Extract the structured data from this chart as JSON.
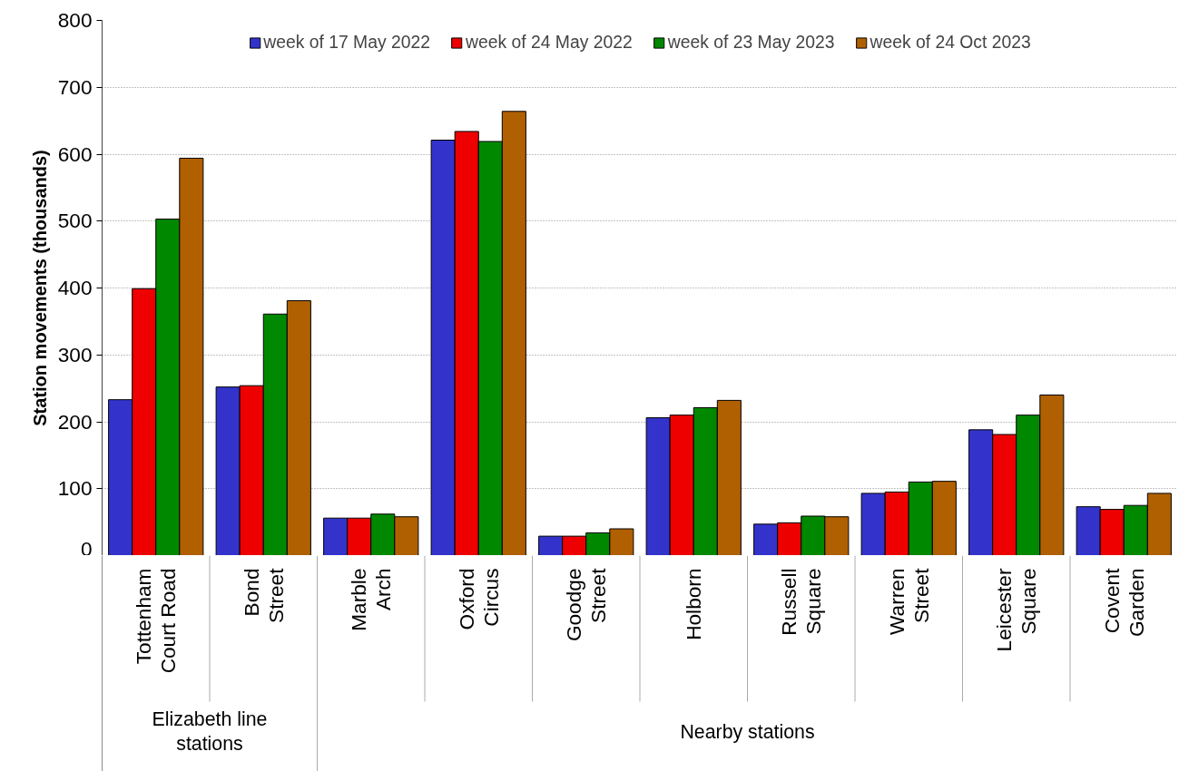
{
  "chart_data": {
    "type": "bar",
    "ylabel": "Station movements (thousands)",
    "categories": [
      "Tottenham\nCourt Road",
      "Bond\nStreet",
      "Marble\nArch",
      "Oxford\nCircus",
      "Goodge\nStreet",
      "Holborn",
      "Russell\nSquare",
      "Warren\nStreet",
      "Leicester\nSquare",
      "Covent\nGarden"
    ],
    "series": [
      {
        "name": "week of 17 May 2022",
        "color": "#3333cc",
        "values": [
          233,
          252,
          56,
          621,
          29,
          206,
          47,
          93,
          188,
          73
        ]
      },
      {
        "name": "week of 24 May 2022",
        "color": "#ee0000",
        "values": [
          399,
          254,
          56,
          634,
          29,
          210,
          49,
          95,
          181,
          69
        ]
      },
      {
        "name": "week of 23 May 2023",
        "color": "#008800",
        "values": [
          503,
          361,
          62,
          619,
          34,
          221,
          59,
          110,
          210,
          75
        ]
      },
      {
        "name": "week of 24 Oct 2023",
        "color": "#b06000",
        "values": [
          594,
          381,
          58,
          664,
          40,
          232,
          58,
          111,
          240,
          93
        ]
      }
    ],
    "ylim": [
      0,
      800
    ],
    "yticks": [
      0,
      100,
      200,
      300,
      400,
      500,
      600,
      700,
      800
    ],
    "grid": "y",
    "legend": "top",
    "annotations": [
      "Elizabeth line\nstations",
      "Nearby stations"
    ]
  }
}
